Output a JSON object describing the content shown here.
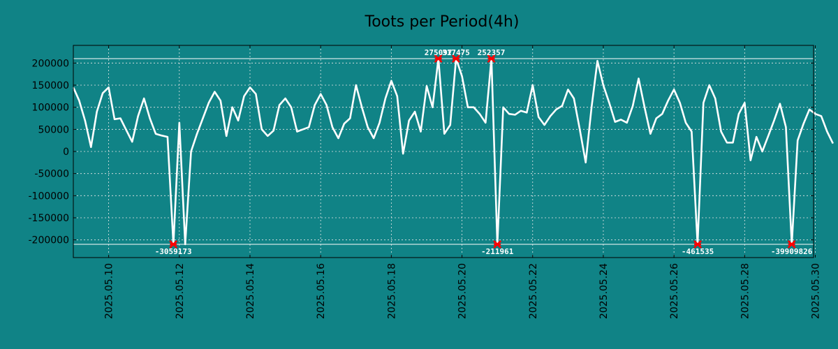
{
  "chart_data": {
    "type": "line",
    "title": "Toots per Period(4h)",
    "xlabel": "",
    "ylabel": "",
    "ylim": [
      -240000,
      240000
    ],
    "yticks": [
      200000,
      150000,
      100000,
      50000,
      0,
      -50000,
      -100000,
      -150000,
      -200000
    ],
    "ytick_labels": [
      "200000",
      "150000",
      "100000",
      "50000",
      "0",
      "-50000",
      "-100000",
      "-150000",
      "-200000"
    ],
    "x_range_days": [
      0,
      20.95
    ],
    "xticks": [
      1,
      3,
      5,
      7,
      9,
      11,
      13,
      15,
      17,
      19,
      21
    ],
    "xtick_labels": [
      "2025.05.10",
      "2025.05.12",
      "2025.05.14",
      "2025.05.16",
      "2025.05.18",
      "2025.05.20",
      "2025.05.22",
      "2025.05.24",
      "2025.05.26",
      "2025.05.28",
      "2025.05.30"
    ],
    "clip_lines": [
      210000,
      -210000
    ],
    "grid": true,
    "colors": {
      "background": "#108386",
      "line": "#ffffff",
      "marker": "#ff0000",
      "grid": "#e8e8e8"
    },
    "outliers": [
      {
        "x": 2.83,
        "y": -210000,
        "label": "-3059173",
        "label_pos": "below"
      },
      {
        "x": 10.33,
        "y": 210000,
        "label": "275097",
        "label_pos": "above"
      },
      {
        "x": 10.83,
        "y": 210000,
        "label": "317475",
        "label_pos": "above"
      },
      {
        "x": 11.83,
        "y": 210000,
        "label": "252357",
        "label_pos": "above"
      },
      {
        "x": 12.0,
        "y": -210000,
        "label": "-211961",
        "label_pos": "below"
      },
      {
        "x": 17.67,
        "y": -210000,
        "label": "-461535",
        "label_pos": "below"
      },
      {
        "x": 20.33,
        "y": -210000,
        "label": "-39909826",
        "label_pos": "below"
      }
    ],
    "series": [
      {
        "name": "Toots",
        "points": [
          [
            0,
            145000
          ],
          [
            0.167,
            115000
          ],
          [
            0.333,
            70000
          ],
          [
            0.5,
            10000
          ],
          [
            0.667,
            90000
          ],
          [
            0.833,
            132000
          ],
          [
            1.0,
            145000
          ],
          [
            1.167,
            73000
          ],
          [
            1.333,
            75000
          ],
          [
            1.5,
            48000
          ],
          [
            1.667,
            22000
          ],
          [
            1.833,
            80000
          ],
          [
            2.0,
            120000
          ],
          [
            2.167,
            75000
          ],
          [
            2.333,
            40000
          ],
          [
            2.5,
            36000
          ],
          [
            2.667,
            33000
          ],
          [
            2.833,
            -210000
          ],
          [
            3.0,
            65000
          ],
          [
            3.167,
            -210000
          ],
          [
            3.333,
            0
          ],
          [
            3.5,
            40000
          ],
          [
            3.667,
            75000
          ],
          [
            3.833,
            110000
          ],
          [
            4.0,
            135000
          ],
          [
            4.167,
            115000
          ],
          [
            4.333,
            35000
          ],
          [
            4.5,
            100000
          ],
          [
            4.667,
            70000
          ],
          [
            4.833,
            125000
          ],
          [
            5.0,
            145000
          ],
          [
            5.167,
            130000
          ],
          [
            5.333,
            50000
          ],
          [
            5.5,
            35000
          ],
          [
            5.667,
            47000
          ],
          [
            5.833,
            105000
          ],
          [
            6.0,
            120000
          ],
          [
            6.167,
            100000
          ],
          [
            6.333,
            45000
          ],
          [
            6.5,
            50000
          ],
          [
            6.667,
            55000
          ],
          [
            6.833,
            105000
          ],
          [
            7.0,
            130000
          ],
          [
            7.167,
            105000
          ],
          [
            7.333,
            55000
          ],
          [
            7.5,
            30000
          ],
          [
            7.667,
            63000
          ],
          [
            7.833,
            75000
          ],
          [
            8.0,
            150000
          ],
          [
            8.167,
            100000
          ],
          [
            8.333,
            55000
          ],
          [
            8.5,
            30000
          ],
          [
            8.667,
            65000
          ],
          [
            8.833,
            120000
          ],
          [
            9.0,
            160000
          ],
          [
            9.167,
            125000
          ],
          [
            9.333,
            -5000
          ],
          [
            9.5,
            70000
          ],
          [
            9.667,
            90000
          ],
          [
            9.833,
            45000
          ],
          [
            10.0,
            148000
          ],
          [
            10.167,
            100000
          ],
          [
            10.333,
            210000
          ],
          [
            10.5,
            40000
          ],
          [
            10.667,
            60000
          ],
          [
            10.833,
            210000
          ],
          [
            11.0,
            170000
          ],
          [
            11.167,
            100000
          ],
          [
            11.333,
            100000
          ],
          [
            11.5,
            85000
          ],
          [
            11.667,
            65000
          ],
          [
            11.833,
            210000
          ],
          [
            12.0,
            -210000
          ],
          [
            12.167,
            100000
          ],
          [
            12.333,
            85000
          ],
          [
            12.5,
            83000
          ],
          [
            12.667,
            92000
          ],
          [
            12.833,
            88000
          ],
          [
            13.0,
            150000
          ],
          [
            13.167,
            78000
          ],
          [
            13.333,
            60000
          ],
          [
            13.5,
            80000
          ],
          [
            13.667,
            95000
          ],
          [
            13.833,
            103000
          ],
          [
            14.0,
            140000
          ],
          [
            14.167,
            120000
          ],
          [
            14.333,
            50000
          ],
          [
            14.5,
            -25000
          ],
          [
            14.667,
            100000
          ],
          [
            14.833,
            205000
          ],
          [
            15.0,
            150000
          ],
          [
            15.167,
            110000
          ],
          [
            15.333,
            67000
          ],
          [
            15.5,
            72000
          ],
          [
            15.667,
            65000
          ],
          [
            15.833,
            103000
          ],
          [
            16.0,
            165000
          ],
          [
            16.167,
            100000
          ],
          [
            16.333,
            40000
          ],
          [
            16.5,
            75000
          ],
          [
            16.667,
            85000
          ],
          [
            16.833,
            115000
          ],
          [
            17.0,
            140000
          ],
          [
            17.167,
            110000
          ],
          [
            17.333,
            65000
          ],
          [
            17.5,
            45000
          ],
          [
            17.667,
            -210000
          ],
          [
            17.833,
            110000
          ],
          [
            18.0,
            150000
          ],
          [
            18.167,
            120000
          ],
          [
            18.333,
            45000
          ],
          [
            18.5,
            20000
          ],
          [
            18.667,
            20000
          ],
          [
            18.833,
            85000
          ],
          [
            19.0,
            110000
          ],
          [
            19.167,
            -20000
          ],
          [
            19.333,
            33000
          ],
          [
            19.5,
            0
          ],
          [
            19.667,
            35000
          ],
          [
            19.833,
            70000
          ],
          [
            20.0,
            108000
          ],
          [
            20.167,
            55000
          ],
          [
            20.333,
            -210000
          ],
          [
            20.5,
            25000
          ],
          [
            20.667,
            63000
          ],
          [
            20.833,
            95000
          ],
          [
            21.0,
            85000
          ],
          [
            21.167,
            80000
          ],
          [
            21.333,
            45000
          ],
          [
            21.5,
            18000
          ]
        ]
      }
    ]
  }
}
